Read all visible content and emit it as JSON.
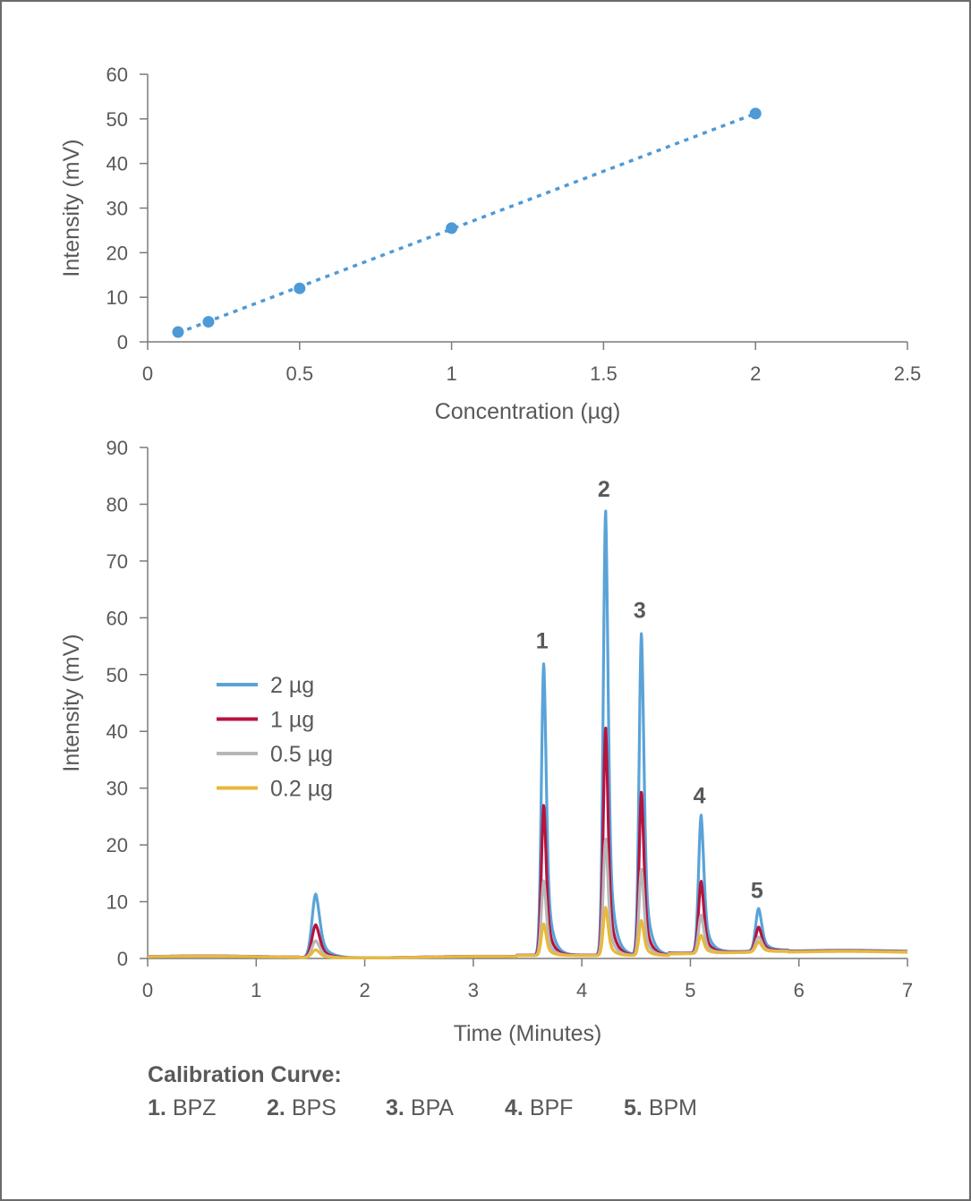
{
  "chart_data": [
    {
      "type": "scatter",
      "title": "",
      "xlabel": "Concentration (µg)",
      "ylabel": "Intensity (mV)",
      "xlim": [
        0,
        2.5
      ],
      "ylim": [
        0,
        60
      ],
      "x_ticks": [
        "0",
        "0.5",
        "1",
        "1.5",
        "2",
        "2.5"
      ],
      "y_ticks": [
        "0",
        "10",
        "20",
        "30",
        "40",
        "50",
        "60"
      ],
      "series": [
        {
          "x": [
            0.1,
            0.2,
            0.5,
            1.0,
            2.0
          ],
          "y": [
            2.2,
            4.5,
            12.0,
            25.5,
            51.2
          ],
          "color": "#4e9ad6"
        }
      ],
      "trendline": {
        "style": "dotted",
        "x": [
          0.1,
          2.0
        ],
        "y": [
          2.0,
          51.2
        ],
        "color": "#4e9ad6"
      }
    },
    {
      "type": "line",
      "title": "",
      "xlabel": "Time (Minutes)",
      "ylabel": "Intensity (mV)",
      "xlim": [
        0,
        7
      ],
      "ylim": [
        0,
        90
      ],
      "x_ticks": [
        "0",
        "1",
        "2",
        "3",
        "4",
        "5",
        "6",
        "7"
      ],
      "y_ticks": [
        "0",
        "10",
        "20",
        "30",
        "40",
        "50",
        "60",
        "70",
        "80",
        "90"
      ],
      "legend_position": "left-middle",
      "peaks": [
        {
          "label": "1",
          "x": 3.65
        },
        {
          "label": "2",
          "x": 4.22
        },
        {
          "label": "3",
          "x": 4.55
        },
        {
          "label": "4",
          "x": 5.1
        },
        {
          "label": "5",
          "x": 5.63
        }
      ],
      "series": [
        {
          "name": "2 µg",
          "color": "#5aa3d8",
          "peak_heights": [
            11.2,
            51.5,
            78.2,
            56.8,
            24.2,
            7.5
          ]
        },
        {
          "name": "1 µg",
          "color": "#b5143f",
          "peak_heights": [
            5.8,
            26.5,
            40.0,
            28.8,
            12.6,
            4.3
          ]
        },
        {
          "name": "0.5 µg",
          "color": "#b7b7b7",
          "peak_heights": [
            3.0,
            13.2,
            20.5,
            15.2,
            6.7,
            2.6
          ]
        },
        {
          "name": "0.2 µg",
          "color": "#e8b93a",
          "peak_heights": [
            1.4,
            5.6,
            8.5,
            6.2,
            3.2,
            1.8
          ]
        }
      ],
      "peak_times": [
        1.55,
        3.65,
        4.22,
        4.55,
        5.1,
        5.63
      ]
    }
  ],
  "footer": {
    "title": "Calibration Curve:",
    "items": [
      {
        "num": "1.",
        "name": "BPZ"
      },
      {
        "num": "2.",
        "name": "BPS"
      },
      {
        "num": "3.",
        "name": "BPA"
      },
      {
        "num": "4.",
        "name": "BPF"
      },
      {
        "num": "5.",
        "name": "BPM"
      }
    ]
  }
}
